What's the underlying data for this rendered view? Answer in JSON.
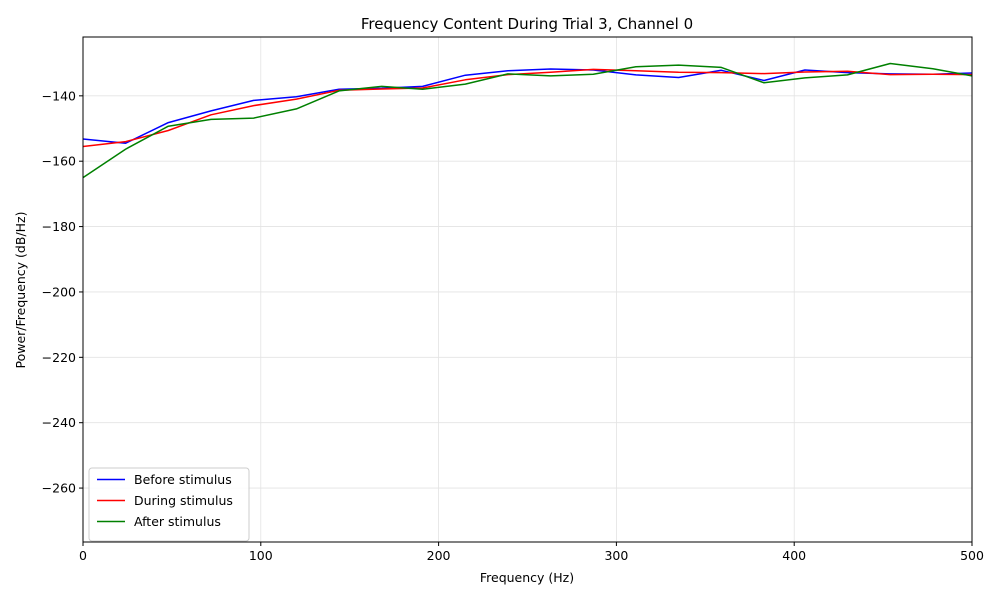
{
  "chart_data": {
    "type": "line",
    "title": "Frequency Content During Trial 3, Channel 0",
    "xlabel": "Frequency (Hz)",
    "ylabel": "Power/Frequency (dB/Hz)",
    "xlim": [
      0,
      500
    ],
    "ylim": [
      -276.5,
      -122
    ],
    "xticks": [
      0,
      100,
      200,
      300,
      400,
      500
    ],
    "yticks": [
      -260,
      -240,
      -220,
      -200,
      -180,
      -160,
      -140
    ],
    "grid": true,
    "legend_position": "lower-left",
    "series": [
      {
        "name": "Before stimulus",
        "color": "#0000ff",
        "x": [
          0,
          24,
          48,
          72,
          96,
          120,
          144,
          168,
          191,
          215,
          239,
          263,
          287,
          311,
          335,
          359,
          383,
          406,
          430,
          454,
          478,
          500
        ],
        "y": [
          -153.2,
          -154.5,
          -148.2,
          -144.6,
          -141.4,
          -140.3,
          -138,
          -137.7,
          -137.1,
          -133.7,
          -132.3,
          -131.8,
          -132.1,
          -133.6,
          -134.4,
          -132.2,
          -135.3,
          -132.1,
          -132.9,
          -133.3,
          -133.4,
          -133
        ]
      },
      {
        "name": "During stimulus",
        "color": "#ff0000",
        "x": [
          0,
          24,
          48,
          72,
          96,
          120,
          144,
          168,
          191,
          215,
          239,
          263,
          287,
          311,
          335,
          359,
          383,
          406,
          430,
          454,
          478,
          500
        ],
        "y": [
          -155.5,
          -154,
          -150.6,
          -145.8,
          -143,
          -141,
          -138.3,
          -137.9,
          -137.6,
          -135.1,
          -133.5,
          -132.8,
          -131.9,
          -132.3,
          -132.8,
          -132.9,
          -133.2,
          -132.7,
          -132.5,
          -133.5,
          -133.4,
          -133.5
        ]
      },
      {
        "name": "After stimulus",
        "color": "#008000",
        "x": [
          0,
          24,
          48,
          72,
          96,
          120,
          144,
          168,
          191,
          215,
          239,
          263,
          287,
          311,
          335,
          359,
          383,
          406,
          430,
          454,
          478,
          500
        ],
        "y": [
          -165,
          -156.3,
          -149.3,
          -147.2,
          -146.8,
          -144,
          -138.5,
          -137.1,
          -138,
          -136.4,
          -133.3,
          -133.9,
          -133.4,
          -131.1,
          -130.6,
          -131.3,
          -136,
          -134.5,
          -133.6,
          -130.1,
          -131.7,
          -133.9
        ]
      }
    ]
  }
}
